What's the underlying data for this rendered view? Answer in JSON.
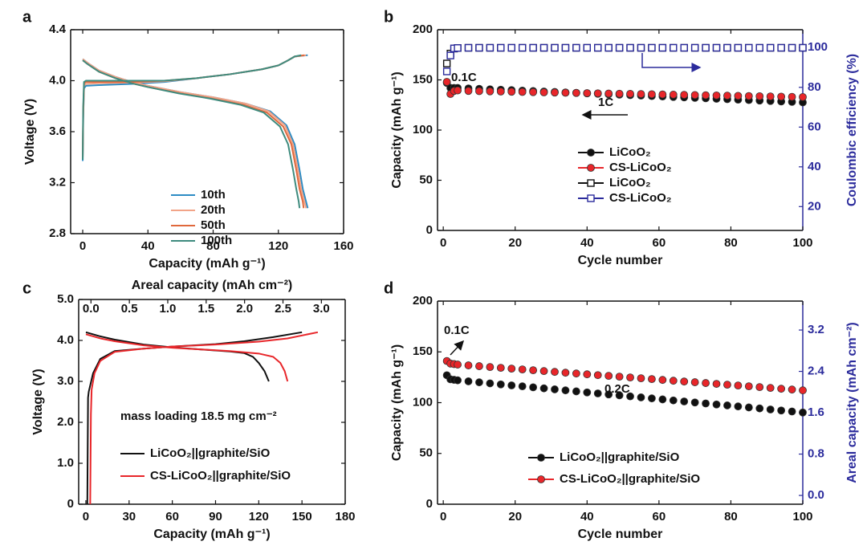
{
  "chart_data": [
    {
      "type": "line",
      "panel": "a",
      "xlabel": "Capacity (mAh g⁻¹)",
      "ylabel": "Voltage (V)",
      "xlim": [
        -7.4,
        160
      ],
      "ylim": [
        2.8,
        4.4
      ],
      "xticks": [
        0,
        40,
        80,
        120,
        160
      ],
      "yticks": [
        2.8,
        3.2,
        3.6,
        {
          "value": 4,
          "label": "4.0"
        },
        4.4
      ],
      "series": [
        {
          "name": "10th",
          "color": "#2c8cc4",
          "x": [
            0,
            0.3,
            0.8,
            2,
            10,
            30,
            50,
            70,
            90,
            110,
            120,
            126,
            130,
            138,
            null,
            0,
            3,
            10,
            20,
            30,
            40,
            60,
            80,
            100,
            115,
            125,
            130,
            133,
            135,
            137,
            138
          ],
          "values": [
            3.37,
            3.7,
            3.94,
            3.96,
            3.965,
            3.975,
            3.99,
            4.02,
            4.05,
            4.09,
            4.12,
            4.16,
            4.19,
            4.2,
            null,
            4.17,
            4.14,
            4.08,
            4.03,
            3.99,
            3.96,
            3.91,
            3.87,
            3.82,
            3.76,
            3.65,
            3.5,
            3.3,
            3.15,
            3.05,
            3.0
          ]
        },
        {
          "name": "20th",
          "color": "#f2a488",
          "x": [
            0,
            0.3,
            0.8,
            2,
            10,
            30,
            50,
            70,
            90,
            110,
            120,
            126,
            130,
            137,
            null,
            0,
            3,
            10,
            20,
            30,
            40,
            60,
            80,
            100,
            114,
            124,
            129,
            132,
            134,
            136,
            137
          ],
          "values": [
            3.4,
            3.72,
            3.96,
            3.975,
            3.98,
            3.985,
            3.995,
            4.02,
            4.05,
            4.09,
            4.12,
            4.16,
            4.19,
            4.2,
            null,
            4.17,
            4.14,
            4.08,
            4.03,
            3.99,
            3.96,
            3.91,
            3.87,
            3.82,
            3.76,
            3.65,
            3.5,
            3.3,
            3.15,
            3.05,
            3.0
          ]
        },
        {
          "name": "50th",
          "color": "#e0683c",
          "x": [
            0,
            0.3,
            0.8,
            2,
            10,
            30,
            50,
            70,
            90,
            110,
            120,
            126,
            130,
            136,
            null,
            0,
            3,
            10,
            20,
            30,
            40,
            60,
            79,
            99,
            113,
            123,
            128,
            131,
            133,
            135,
            135.5
          ],
          "values": [
            3.4,
            3.75,
            3.98,
            3.99,
            3.99,
            3.99,
            4.0,
            4.02,
            4.05,
            4.09,
            4.12,
            4.16,
            4.19,
            4.2,
            null,
            4.16,
            4.13,
            4.07,
            4.02,
            3.98,
            3.95,
            3.9,
            3.86,
            3.81,
            3.75,
            3.64,
            3.5,
            3.3,
            3.15,
            3.05,
            3.0
          ]
        },
        {
          "name": "100th",
          "color": "#3e8b7e",
          "x": [
            0,
            0.3,
            0.8,
            2,
            10,
            30,
            50,
            70,
            90,
            110,
            120,
            126,
            130,
            134,
            null,
            0,
            3,
            10,
            20,
            30,
            40,
            59,
            78,
            97,
            111,
            121,
            126,
            129,
            131,
            132.5,
            133
          ],
          "values": [
            3.38,
            3.8,
            3.99,
            4.0,
            4.0,
            4.0,
            4.0,
            4.02,
            4.05,
            4.09,
            4.12,
            4.16,
            4.19,
            4.2,
            null,
            4.16,
            4.13,
            4.07,
            4.02,
            3.98,
            3.95,
            3.9,
            3.86,
            3.81,
            3.75,
            3.64,
            3.5,
            3.3,
            3.15,
            3.05,
            3.0
          ]
        }
      ]
    },
    {
      "type": "scatter",
      "panel": "b",
      "xlabel": "Cycle number",
      "ylabel": "Capacity (mAh g⁻¹)",
      "y2label": "Coulombic efficiency (%)",
      "xlim": [
        -1.6,
        100
      ],
      "ylim": [
        0,
        200
      ],
      "y2lim": [
        8,
        109
      ],
      "y2color": "#2b2b9c",
      "xticks": [
        0,
        20,
        40,
        60,
        80,
        100
      ],
      "yticks": [
        0,
        50,
        100,
        150,
        200
      ],
      "y2ticks": [
        20,
        40,
        60,
        80,
        100
      ],
      "annotations": [
        "0.1C",
        "1C"
      ],
      "x": [
        1,
        2,
        3,
        4,
        7,
        10,
        13,
        16,
        19,
        22,
        25,
        28,
        31,
        34,
        37,
        40,
        43,
        46,
        49,
        52,
        55,
        58,
        61,
        64,
        67,
        70,
        73,
        76,
        79,
        82,
        85,
        88,
        91,
        94,
        97,
        100
      ],
      "series": [
        {
          "name": "LiCoO₂",
          "color": "#111111",
          "marker": "circle",
          "filled": true,
          "values": [
            147,
            142,
            142,
            142,
            141.5,
            141.1,
            140.6,
            140.2,
            139.8,
            139.3,
            138.9,
            138.4,
            138.0,
            137.5,
            137.1,
            136.6,
            136.2,
            135.7,
            135.3,
            134.8,
            134.4,
            133.9,
            133.5,
            133.0,
            132.6,
            132.1,
            131.7,
            131.2,
            130.8,
            130.3,
            129.9,
            129.4,
            129.0,
            128.5,
            128.1,
            127.6
          ]
        },
        {
          "name": "CS-LiCoO₂",
          "color": "#e8262a",
          "marker": "circle",
          "filled": true,
          "values": [
            148,
            136,
            139,
            139.5,
            139.0,
            138.8,
            138.6,
            138.4,
            138.2,
            138.0,
            137.8,
            137.6,
            137.4,
            137.2,
            137.0,
            136.8,
            136.6,
            136.4,
            136.2,
            136.1,
            135.9,
            135.7,
            135.5,
            135.3,
            135.1,
            134.9,
            134.7,
            134.5,
            134.3,
            134.1,
            133.9,
            133.7,
            133.5,
            133.3,
            133.1,
            132.9
          ]
        },
        {
          "name": "LiCoO₂",
          "color": "#111111",
          "marker": "square",
          "filled": false,
          "axis": "y2",
          "values": [
            92,
            97,
            99.5,
            99.8,
            99.9,
            99.9,
            99.9,
            99.9,
            99.9,
            99.9,
            99.9,
            99.9,
            99.9,
            99.9,
            99.9,
            99.9,
            99.9,
            99.9,
            99.9,
            99.9,
            99.9,
            99.9,
            99.9,
            99.9,
            99.9,
            99.9,
            99.9,
            99.9,
            99.9,
            99.9,
            99.9,
            99.9,
            99.9,
            99.9,
            99.9,
            99.9
          ]
        },
        {
          "name": "CS-LiCoO₂",
          "color": "#2b2b9c",
          "marker": "square",
          "filled": false,
          "axis": "y2",
          "values": [
            88,
            96,
            99.6,
            99.8,
            99.9,
            99.9,
            99.9,
            99.9,
            99.9,
            99.9,
            99.9,
            99.9,
            99.9,
            99.9,
            99.9,
            99.9,
            99.9,
            99.9,
            99.9,
            99.9,
            99.9,
            99.9,
            99.9,
            99.9,
            99.9,
            99.9,
            99.9,
            99.9,
            99.9,
            99.9,
            99.9,
            99.9,
            99.9,
            99.9,
            99.9,
            99.9
          ]
        }
      ]
    },
    {
      "type": "line",
      "panel": "c",
      "xlabel": "Capacity (mAh g⁻¹)",
      "ylabel": "Voltage (V)",
      "x2label": "Areal capacity (mAh cm⁻²)",
      "xlim": [
        -5,
        180
      ],
      "ylim": [
        0,
        5
      ],
      "x2lim": [
        -0.16,
        3.31
      ],
      "xticks": [
        0,
        30,
        60,
        90,
        120,
        150,
        180
      ],
      "yticks": [
        0,
        {
          "value": 1,
          "label": "1.0"
        },
        {
          "value": 2,
          "label": "2.0"
        },
        {
          "value": 3,
          "label": "3.0"
        },
        {
          "value": 4,
          "label": "4.0"
        },
        {
          "value": 5,
          "label": "5.0"
        }
      ],
      "x2ticks": [
        {
          "value": 0,
          "label": "0.0"
        },
        0.5,
        {
          "value": 1,
          "label": "1.0"
        },
        1.5,
        {
          "value": 2,
          "label": "2.0"
        },
        2.5,
        {
          "value": 3,
          "label": "3.0"
        }
      ],
      "annotations": [
        "mass loading 18.5 mg cm⁻²"
      ],
      "series": [
        {
          "name": "LiCoO₂||graphite/SiO",
          "color": "#111111",
          "x": [
            1,
            1.5,
            2,
            3,
            5,
            10,
            20,
            40,
            60,
            90,
            110,
            130,
            150,
            null,
            0,
            10,
            20,
            40,
            60,
            80,
            100,
            110,
            116,
            120,
            124,
            127
          ],
          "values": [
            0,
            2.6,
            2.75,
            2.9,
            3.2,
            3.55,
            3.74,
            3.8,
            3.85,
            3.91,
            3.98,
            4.08,
            4.2,
            null,
            4.2,
            4.1,
            4.02,
            3.9,
            3.83,
            3.78,
            3.73,
            3.69,
            3.6,
            3.45,
            3.25,
            3.0
          ]
        },
        {
          "name": "CS-LiCoO₂||graphite/SiO",
          "color": "#e8262a",
          "x": [
            3,
            3.5,
            4,
            6,
            10,
            20,
            40,
            60,
            90,
            120,
            140,
            161,
            null,
            0,
            10,
            20,
            40,
            60,
            80,
            100,
            120,
            130,
            135,
            138,
            140
          ],
          "values": [
            0,
            2.2,
            2.8,
            3.2,
            3.5,
            3.72,
            3.8,
            3.85,
            3.9,
            3.97,
            4.05,
            4.2,
            null,
            4.15,
            4.05,
            3.98,
            3.88,
            3.82,
            3.78,
            3.74,
            3.68,
            3.6,
            3.45,
            3.25,
            3.0
          ]
        }
      ]
    },
    {
      "type": "scatter",
      "panel": "d",
      "xlabel": "Cycle number",
      "ylabel": "Capacity (mAh g⁻¹)",
      "y2label": "Areal capacity (mAh cm⁻²)",
      "xlim": [
        -1.6,
        100
      ],
      "ylim": [
        0,
        200
      ],
      "y2lim": [
        -0.17,
        3.76
      ],
      "y2color": "#2b2b9c",
      "xticks": [
        0,
        20,
        40,
        60,
        80,
        100
      ],
      "yticks": [
        0,
        50,
        100,
        150,
        200
      ],
      "y2ticks": [
        {
          "value": 0,
          "label": "0.0"
        },
        0.8,
        1.6,
        2.4,
        3.2
      ],
      "annotations": [
        "0.1C",
        "0.2C"
      ],
      "x": [
        1,
        2,
        3,
        4,
        7,
        10,
        13,
        16,
        19,
        22,
        25,
        28,
        31,
        34,
        37,
        40,
        43,
        46,
        49,
        52,
        55,
        58,
        61,
        64,
        67,
        70,
        73,
        76,
        79,
        82,
        85,
        88,
        91,
        94,
        97,
        100
      ],
      "series": [
        {
          "name": "LiCoO₂||graphite/SiO",
          "color": "#111111",
          "marker": "circle",
          "filled": true,
          "values": [
            127,
            123,
            122.5,
            122,
            121.0,
            120.0,
            119.0,
            118.0,
            117.0,
            116.1,
            115.1,
            114.1,
            113.1,
            112.1,
            111.1,
            110.1,
            109.1,
            108.1,
            107.2,
            106.2,
            105.2,
            104.2,
            103.2,
            102.2,
            101.2,
            100.2,
            99.2,
            98.2,
            97.3,
            96.3,
            95.3,
            94.3,
            93.3,
            92.3,
            91.3,
            90.3
          ]
        },
        {
          "name": "CS-LiCoO₂||graphite/SiO",
          "color": "#e8262a",
          "marker": "circle",
          "filled": true,
          "values": [
            141,
            138.5,
            138,
            137.5,
            136.7,
            135.9,
            135.1,
            134.3,
            133.5,
            132.7,
            131.9,
            131.1,
            130.3,
            129.5,
            128.7,
            127.9,
            127.1,
            126.4,
            125.6,
            124.8,
            124.0,
            123.2,
            122.4,
            121.6,
            120.8,
            120.1,
            119.3,
            118.5,
            117.7,
            116.9,
            116.1,
            115.3,
            114.5,
            113.7,
            112.9,
            112.1
          ]
        }
      ]
    }
  ]
}
